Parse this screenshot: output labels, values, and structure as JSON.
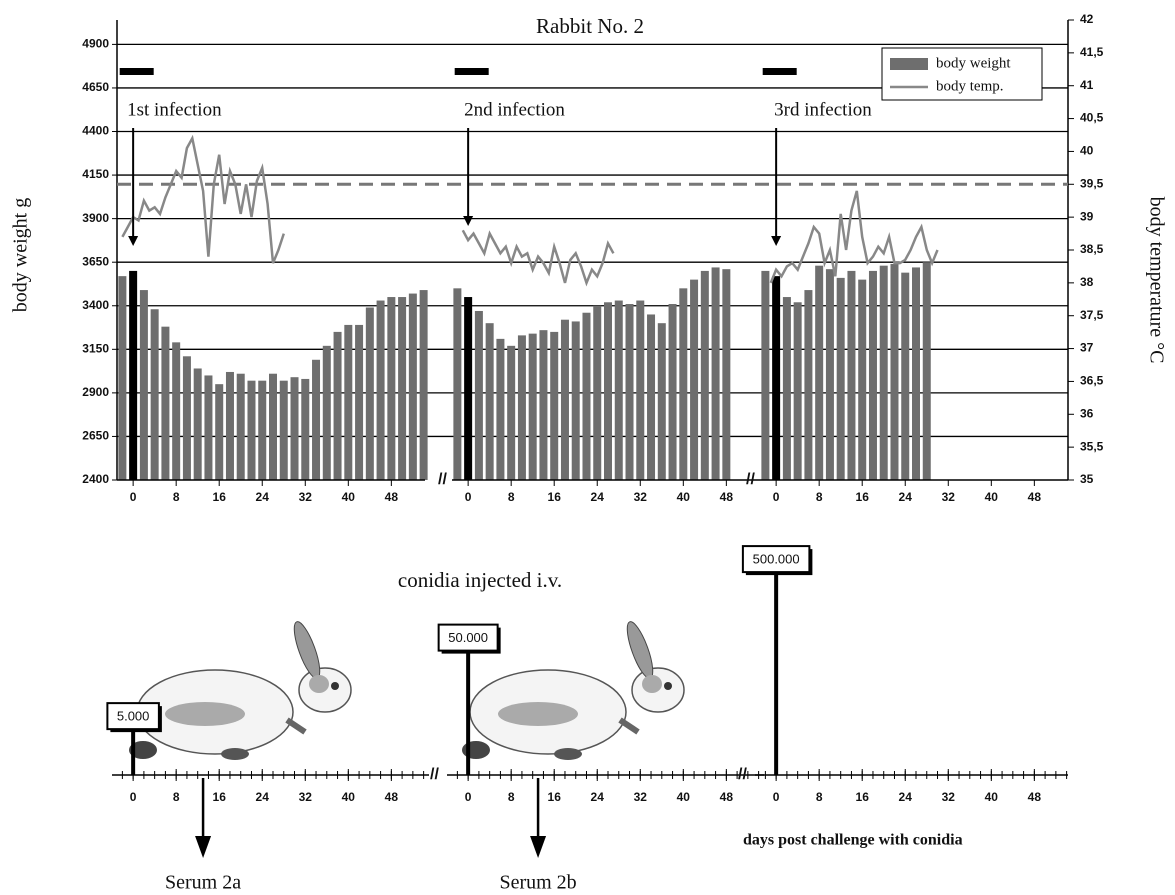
{
  "chart_data": [
    {
      "type": "bar",
      "title": "Rabbit No. 2",
      "y_label": "body weight  g",
      "y2_label": "body temperature °C",
      "ylim": [
        2400,
        5040
      ],
      "yticks": [
        2400,
        2650,
        2900,
        3150,
        3400,
        3650,
        3900,
        4150,
        4400,
        4650,
        4900
      ],
      "y2lim": [
        35,
        42
      ],
      "y2ticks": [
        35,
        {
          "value": 35.5,
          "label": "35,5"
        },
        36,
        {
          "value": 36.5,
          "label": "36,5"
        },
        37,
        {
          "value": 37.5,
          "label": "37,5"
        },
        38,
        {
          "value": 38.5,
          "label": "38,5"
        },
        39,
        {
          "value": 39.5,
          "label": "39,5"
        },
        40,
        {
          "value": 40.5,
          "label": "40,5"
        },
        41,
        {
          "value": 41.5,
          "label": "41,5"
        },
        42
      ],
      "xlim": [
        -3,
        55
      ],
      "xticks": [
        0,
        8,
        16,
        24,
        32,
        40,
        48
      ],
      "grid": true,
      "reference_line": 39.5,
      "legend": "upper right",
      "series": [
        {
          "name": "body weight",
          "color": "#6e6e6e"
        },
        {
          "name": "body temp.",
          "color": "#888888",
          "axis": "y2"
        }
      ],
      "panels": [
        {
          "annotation": "1st infection",
          "infection_day": 0,
          "weight": {
            "x": [
              -2,
              0,
              2,
              4,
              6,
              8,
              10,
              12,
              14,
              16,
              18,
              20,
              22,
              24,
              26,
              28,
              30,
              32,
              34,
              36,
              38,
              40,
              42,
              44,
              46,
              48,
              50,
              52,
              54
            ],
            "values": [
              3570,
              3600,
              3490,
              3380,
              3280,
              3190,
              3110,
              3040,
              3000,
              2950,
              3020,
              3010,
              2970,
              2970,
              3010,
              2970,
              2990,
              2980,
              3090,
              3170,
              3250,
              3290,
              3290,
              3390,
              3430,
              3450,
              3450,
              3470,
              3490
            ]
          },
          "temp": {
            "x": [
              -2,
              -1,
              0,
              1,
              2,
              3,
              4,
              5,
              6,
              7,
              8,
              9,
              10,
              11,
              12,
              13,
              14,
              15,
              16,
              17,
              18,
              19,
              20,
              21,
              22,
              23,
              24,
              25,
              26,
              27,
              28
            ],
            "values": [
              38.7,
              38.85,
              39.0,
              38.95,
              39.25,
              39.1,
              39.15,
              39.05,
              39.3,
              39.5,
              39.7,
              39.6,
              40.05,
              40.2,
              39.8,
              39.4,
              38.4,
              39.5,
              39.95,
              39.2,
              39.7,
              39.5,
              39.05,
              39.5,
              39.0,
              39.55,
              39.75,
              39.2,
              38.3,
              38.5,
              38.75
            ]
          }
        },
        {
          "annotation": "2nd infection",
          "infection_day": 0,
          "weight": {
            "x": [
              -2,
              0,
              2,
              4,
              6,
              8,
              10,
              12,
              14,
              16,
              18,
              20,
              22,
              24,
              26,
              28,
              30,
              32,
              34,
              36,
              38,
              40,
              42,
              44,
              46,
              48
            ],
            "values": [
              3500,
              3450,
              3370,
              3300,
              3210,
              3170,
              3230,
              3240,
              3260,
              3250,
              3320,
              3310,
              3360,
              3400,
              3420,
              3430,
              3410,
              3430,
              3350,
              3300,
              3410,
              3500,
              3550,
              3600,
              3620,
              3610
            ]
          },
          "temp": {
            "x": [
              -1,
              0,
              1,
              2,
              3,
              4,
              5,
              6,
              7,
              8,
              9,
              10,
              11,
              12,
              13,
              14,
              15,
              16,
              17,
              18,
              19,
              20,
              21,
              22,
              23,
              24,
              25,
              26,
              27
            ],
            "values": [
              38.8,
              38.65,
              38.75,
              38.6,
              38.45,
              38.75,
              38.6,
              38.45,
              38.55,
              38.3,
              38.55,
              38.4,
              38.45,
              38.2,
              38.4,
              38.3,
              38.15,
              38.55,
              38.3,
              38.0,
              38.35,
              38.45,
              38.25,
              38.0,
              38.2,
              38.1,
              38.3,
              38.6,
              38.45
            ]
          }
        },
        {
          "annotation": "3rd infection",
          "infection_day": 0,
          "weight": {
            "x": [
              -2,
              0,
              2,
              4,
              6,
              8,
              10,
              12,
              14,
              16,
              18,
              20,
              22,
              24,
              26,
              28
            ],
            "values": [
              3600,
              3570,
              3450,
              3420,
              3490,
              3630,
              3610,
              3560,
              3600,
              3550,
              3600,
              3630,
              3640,
              3590,
              3620,
              3650
            ]
          },
          "temp": {
            "x": [
              -1,
              0,
              1,
              2,
              3,
              4,
              5,
              6,
              7,
              8,
              9,
              10,
              11,
              12,
              13,
              14,
              15,
              16,
              17,
              18,
              19,
              20,
              21,
              22,
              23,
              24,
              25,
              26,
              27,
              28,
              29,
              30
            ],
            "values": [
              38.0,
              38.2,
              38.1,
              38.25,
              38.3,
              38.2,
              38.4,
              38.6,
              38.85,
              38.75,
              38.3,
              38.5,
              38.1,
              39.05,
              38.5,
              39.1,
              39.4,
              38.7,
              38.3,
              38.4,
              38.55,
              38.45,
              38.7,
              38.3,
              38.3,
              38.35,
              38.5,
              38.7,
              38.85,
              38.5,
              38.3,
              38.5
            ]
          }
        }
      ]
    },
    {
      "type": "timeline",
      "title": "conidia injected i.v.",
      "x_label": "days post challenge with conidia",
      "xlim": [
        -3,
        55
      ],
      "xticks": [
        0,
        8,
        16,
        24,
        32,
        40,
        48
      ],
      "minor_tick_step": 2,
      "log_scale": true,
      "ylim": [
        1000,
        3000000
      ],
      "panels": [
        {
          "day": 0,
          "dose": {
            "value": 5000,
            "label": "5.000"
          },
          "serum": {
            "label": "Serum 2a",
            "day": 13
          }
        },
        {
          "day": 0,
          "dose": {
            "value": 50000,
            "label": "50.000"
          },
          "serum": {
            "label": "Serum 2b",
            "day": 13
          }
        },
        {
          "day": 0,
          "dose": {
            "value": 500000,
            "label": "500.000"
          }
        }
      ]
    }
  ]
}
